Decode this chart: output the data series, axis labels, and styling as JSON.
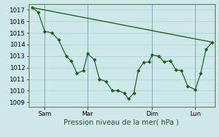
{
  "title": "",
  "xlabel": "Pression niveau de la mer( hPa )",
  "bg_color": "#cce8e8",
  "grid_color": "#aacccc",
  "line_color": "#1a5c1a",
  "ylim_bottom": 1008.6,
  "ylim_top": 1017.5,
  "yticks": [
    1009,
    1010,
    1011,
    1012,
    1013,
    1014,
    1015,
    1016,
    1017
  ],
  "xlim_left": -0.3,
  "xlim_right": 17.0,
  "xtick_pos": [
    1.2,
    5.2,
    11.2,
    15.2
  ],
  "xtick_labels": [
    "Sam",
    "Mar",
    "Dim",
    "Lun"
  ],
  "vline_x": [
    1.2,
    5.2,
    11.2,
    15.2
  ],
  "trend_x": [
    0.05,
    16.8
  ],
  "trend_y": [
    1017.2,
    1014.2
  ],
  "detail_x": [
    0.05,
    0.6,
    1.2,
    1.9,
    2.5,
    3.2,
    3.7,
    4.2,
    4.8,
    5.2,
    5.8,
    6.3,
    6.9,
    7.5,
    8.0,
    8.6,
    9.0,
    9.5,
    9.9,
    10.4,
    10.9,
    11.2,
    11.8,
    12.3,
    12.9,
    13.4,
    13.9,
    14.5,
    15.2,
    15.7,
    16.2,
    16.8
  ],
  "detail_y": [
    1017.2,
    1016.8,
    1015.15,
    1015.0,
    1014.4,
    1013.0,
    1012.55,
    1011.5,
    1011.75,
    1013.2,
    1012.7,
    1011.0,
    1010.8,
    1010.0,
    1010.0,
    1009.8,
    1009.3,
    1009.8,
    1011.75,
    1012.45,
    1012.5,
    1013.1,
    1013.0,
    1012.5,
    1012.6,
    1011.8,
    1011.75,
    1010.4,
    1010.1,
    1011.5,
    1013.6,
    1014.2
  ],
  "tick_fontsize": 6.5,
  "xlabel_fontsize": 7.5
}
